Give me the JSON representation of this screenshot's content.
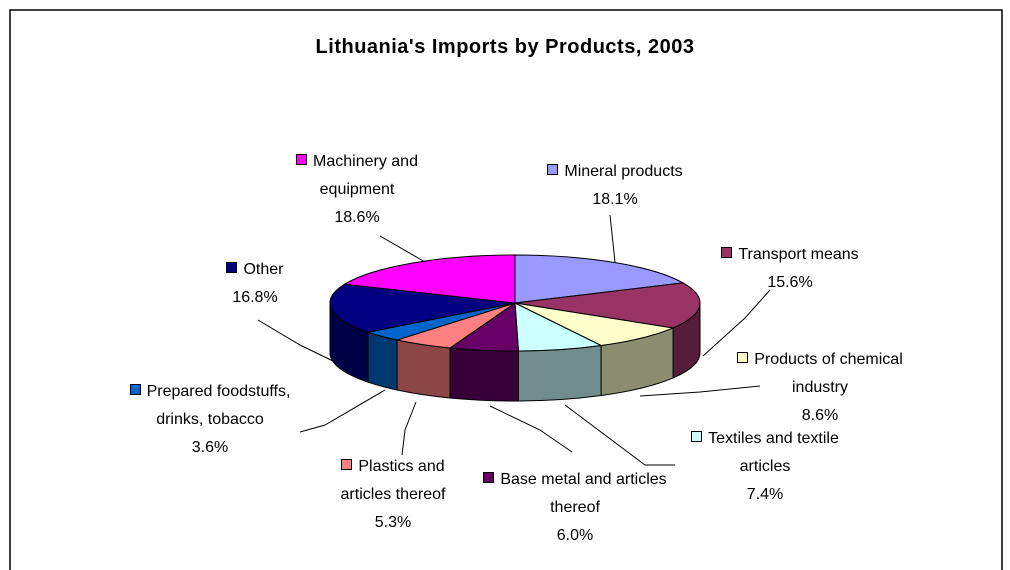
{
  "chart_data": {
    "type": "pie",
    "title": "Lithuania's Imports by Products, 2003",
    "categories": [
      "Mineral products",
      "Transport means",
      "Products of chemical industry",
      "Textiles and textile articles",
      "Base metal and articles thereof",
      "Plastics and articles thereof",
      "Prepared foodstuffs, drinks, tobacco",
      "Other",
      "Machinery and equipment"
    ],
    "values": [
      18.1,
      15.6,
      8.6,
      7.4,
      6.0,
      5.3,
      3.6,
      16.8,
      18.6
    ],
    "value_labels": [
      "18.1%",
      "15.6%",
      "8.6%",
      "7.4%",
      "6.0%",
      "5.3%",
      "3.6%",
      "16.8%",
      "18.6%"
    ],
    "colors": [
      "#9999ff",
      "#993366",
      "#ffffcc",
      "#ccffff",
      "#660066",
      "#ff8080",
      "#0066cc",
      "#000080",
      "#ff00ff"
    ]
  }
}
